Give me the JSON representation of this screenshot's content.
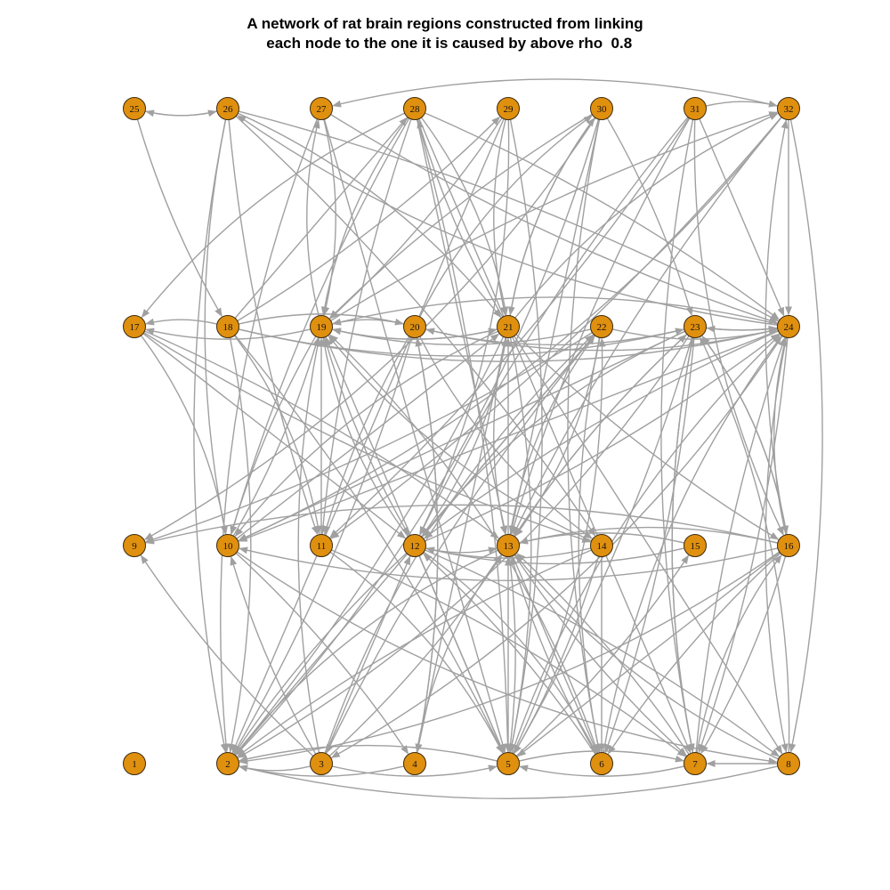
{
  "title": {
    "line1": "A network of rat brain regions constructed from linking",
    "line2": "  each node to the one it is caused by above rho  0.8"
  },
  "colors": {
    "node_fill": "#E0900F",
    "node_stroke": "#3a2a10",
    "edge": "#A0A0A0"
  },
  "graph": {
    "directed": true,
    "layout": "grid of 4 rows x 8 columns",
    "nodes": [
      "1",
      "2",
      "3",
      "4",
      "5",
      "6",
      "7",
      "8",
      "9",
      "10",
      "11",
      "12",
      "13",
      "14",
      "15",
      "16",
      "17",
      "18",
      "19",
      "20",
      "21",
      "22",
      "23",
      "24",
      "25",
      "26",
      "27",
      "28",
      "29",
      "30",
      "31",
      "32"
    ],
    "edges": [
      [
        "3",
        "2"
      ],
      [
        "3",
        "10"
      ],
      [
        "3",
        "12"
      ],
      [
        "3",
        "13"
      ],
      [
        "3",
        "19"
      ],
      [
        "3",
        "22"
      ],
      [
        "3",
        "9"
      ],
      [
        "3",
        "5"
      ],
      [
        "4",
        "2"
      ],
      [
        "4",
        "20"
      ],
      [
        "4",
        "13"
      ],
      [
        "5",
        "2"
      ],
      [
        "5",
        "13"
      ],
      [
        "5",
        "15"
      ],
      [
        "5",
        "22"
      ],
      [
        "5",
        "24"
      ],
      [
        "5",
        "7"
      ],
      [
        "5",
        "19"
      ],
      [
        "6",
        "12"
      ],
      [
        "6",
        "19"
      ],
      [
        "6",
        "24"
      ],
      [
        "6",
        "13"
      ],
      [
        "7",
        "23"
      ],
      [
        "7",
        "13"
      ],
      [
        "7",
        "5"
      ],
      [
        "7",
        "16"
      ],
      [
        "7",
        "24"
      ],
      [
        "8",
        "7"
      ],
      [
        "8",
        "2"
      ],
      [
        "8",
        "23"
      ],
      [
        "8",
        "13"
      ],
      [
        "10",
        "4"
      ],
      [
        "10",
        "21"
      ],
      [
        "10",
        "19"
      ],
      [
        "10",
        "8"
      ],
      [
        "11",
        "5"
      ],
      [
        "11",
        "7"
      ],
      [
        "11",
        "19"
      ],
      [
        "12",
        "2"
      ],
      [
        "12",
        "13"
      ],
      [
        "12",
        "6"
      ],
      [
        "12",
        "8"
      ],
      [
        "12",
        "5"
      ],
      [
        "12",
        "24"
      ],
      [
        "12",
        "21"
      ],
      [
        "12",
        "19"
      ],
      [
        "13",
        "5"
      ],
      [
        "13",
        "6"
      ],
      [
        "13",
        "7"
      ],
      [
        "13",
        "2"
      ],
      [
        "13",
        "22"
      ],
      [
        "13",
        "23"
      ],
      [
        "13",
        "21"
      ],
      [
        "14",
        "2"
      ],
      [
        "14",
        "12"
      ],
      [
        "14",
        "19"
      ],
      [
        "14",
        "5"
      ],
      [
        "14",
        "6"
      ],
      [
        "15",
        "12"
      ],
      [
        "15",
        "13"
      ],
      [
        "16",
        "2"
      ],
      [
        "16",
        "7"
      ],
      [
        "16",
        "10"
      ],
      [
        "16",
        "13"
      ],
      [
        "16",
        "23"
      ],
      [
        "16",
        "24"
      ],
      [
        "16",
        "32"
      ],
      [
        "16",
        "5"
      ],
      [
        "16",
        "6"
      ],
      [
        "16",
        "9"
      ],
      [
        "17",
        "10"
      ],
      [
        "17",
        "13"
      ],
      [
        "17",
        "12"
      ],
      [
        "17",
        "14"
      ],
      [
        "18",
        "17"
      ],
      [
        "18",
        "11"
      ],
      [
        "18",
        "5"
      ],
      [
        "18",
        "28"
      ],
      [
        "18",
        "29"
      ],
      [
        "18",
        "24"
      ],
      [
        "18",
        "2"
      ],
      [
        "18",
        "23"
      ],
      [
        "18",
        "20"
      ],
      [
        "19",
        "10"
      ],
      [
        "19",
        "17"
      ],
      [
        "19",
        "27"
      ],
      [
        "19",
        "32"
      ],
      [
        "19",
        "21"
      ],
      [
        "19",
        "12"
      ],
      [
        "20",
        "19"
      ],
      [
        "20",
        "30"
      ],
      [
        "20",
        "2"
      ],
      [
        "20",
        "4"
      ],
      [
        "20",
        "11"
      ],
      [
        "20",
        "14"
      ],
      [
        "20",
        "24"
      ],
      [
        "21",
        "19"
      ],
      [
        "21",
        "4"
      ],
      [
        "21",
        "5"
      ],
      [
        "21",
        "10"
      ],
      [
        "21",
        "32"
      ],
      [
        "21",
        "28"
      ],
      [
        "21",
        "8"
      ],
      [
        "21",
        "16"
      ],
      [
        "21",
        "13"
      ],
      [
        "21",
        "30"
      ],
      [
        "21",
        "2"
      ],
      [
        "22",
        "2"
      ],
      [
        "22",
        "3"
      ],
      [
        "22",
        "6"
      ],
      [
        "22",
        "13"
      ],
      [
        "22",
        "9"
      ],
      [
        "22",
        "12"
      ],
      [
        "22",
        "24"
      ],
      [
        "22",
        "19"
      ],
      [
        "23",
        "2"
      ],
      [
        "23",
        "6"
      ],
      [
        "23",
        "7"
      ],
      [
        "23",
        "13"
      ],
      [
        "23",
        "12"
      ],
      [
        "23",
        "16"
      ],
      [
        "23",
        "5"
      ],
      [
        "23",
        "10"
      ],
      [
        "23",
        "24"
      ],
      [
        "23",
        "20"
      ],
      [
        "24",
        "3"
      ],
      [
        "24",
        "7"
      ],
      [
        "24",
        "8"
      ],
      [
        "24",
        "12"
      ],
      [
        "24",
        "19"
      ],
      [
        "24",
        "26"
      ],
      [
        "24",
        "23"
      ],
      [
        "24",
        "10"
      ],
      [
        "25",
        "18"
      ],
      [
        "25",
        "26"
      ],
      [
        "26",
        "25"
      ],
      [
        "26",
        "24"
      ],
      [
        "26",
        "2"
      ],
      [
        "26",
        "11"
      ],
      [
        "26",
        "10"
      ],
      [
        "26",
        "21"
      ],
      [
        "26",
        "14"
      ],
      [
        "27",
        "5"
      ],
      [
        "27",
        "24"
      ],
      [
        "27",
        "2"
      ],
      [
        "27",
        "19"
      ],
      [
        "28",
        "5"
      ],
      [
        "28",
        "7"
      ],
      [
        "28",
        "11"
      ],
      [
        "28",
        "17"
      ],
      [
        "28",
        "21"
      ],
      [
        "28",
        "24"
      ],
      [
        "28",
        "13"
      ],
      [
        "28",
        "10"
      ],
      [
        "28",
        "19"
      ],
      [
        "29",
        "12"
      ],
      [
        "29",
        "19"
      ],
      [
        "29",
        "2"
      ],
      [
        "29",
        "5"
      ],
      [
        "29",
        "21"
      ],
      [
        "30",
        "2"
      ],
      [
        "30",
        "6"
      ],
      [
        "30",
        "13"
      ],
      [
        "30",
        "19"
      ],
      [
        "30",
        "21"
      ],
      [
        "30",
        "9"
      ],
      [
        "30",
        "23"
      ],
      [
        "31",
        "7"
      ],
      [
        "31",
        "13"
      ],
      [
        "31",
        "16"
      ],
      [
        "31",
        "32"
      ],
      [
        "31",
        "11"
      ],
      [
        "31",
        "24"
      ],
      [
        "31",
        "12"
      ],
      [
        "32",
        "8"
      ],
      [
        "32",
        "10"
      ],
      [
        "32",
        "11"
      ],
      [
        "32",
        "24"
      ],
      [
        "32",
        "13"
      ],
      [
        "32",
        "27"
      ]
    ]
  }
}
